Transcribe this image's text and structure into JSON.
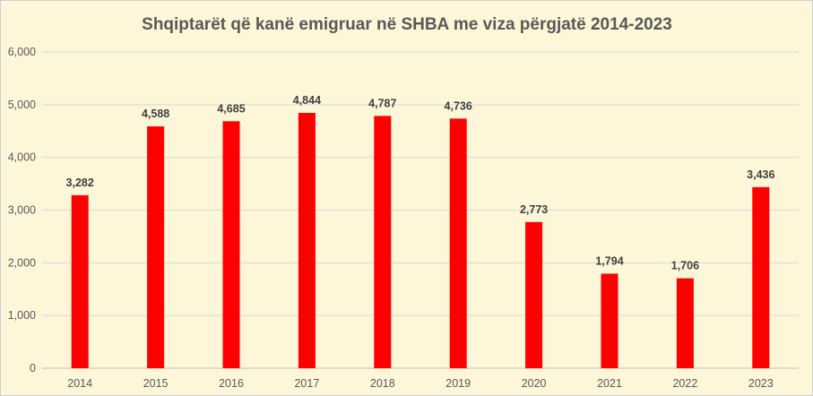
{
  "chart_data": {
    "type": "bar",
    "title": "Shqiptarët që kanë emigruar në SHBA me viza përgjatë 2014-2023",
    "xlabel": "",
    "ylabel": "",
    "categories": [
      "2014",
      "2015",
      "2016",
      "2017",
      "2018",
      "2019",
      "2020",
      "2021",
      "2022",
      "2023"
    ],
    "values": [
      3282,
      4588,
      4685,
      4844,
      4787,
      4736,
      2773,
      1794,
      1706,
      3436
    ],
    "data_labels": [
      "3,282",
      "4,588",
      "4,685",
      "4,844",
      "4,787",
      "4,736",
      "2,773",
      "1,794",
      "1,706",
      "3,436"
    ],
    "ylim": [
      0,
      6000
    ],
    "yticks": [
      "0",
      "1,000",
      "2,000",
      "3,000",
      "4,000",
      "5,000",
      "6,000"
    ],
    "ytick_values": [
      0,
      1000,
      2000,
      3000,
      4000,
      5000,
      6000
    ],
    "grid": true,
    "legend": "none",
    "bar_color": "#ff0000",
    "background_color": "#fdf6d8"
  }
}
